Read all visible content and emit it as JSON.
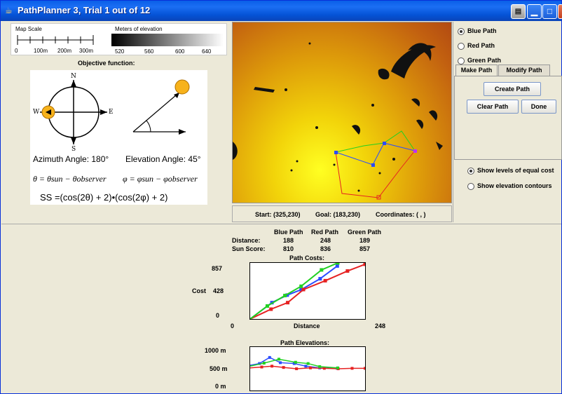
{
  "window": {
    "title": "PathPlanner 3, Trial 1 out of 12",
    "icons": [
      "java-cup-icon",
      "menu-icon",
      "minimize-icon",
      "maximize-icon",
      "close-icon"
    ]
  },
  "scale": {
    "map_scale_label": "Map Scale",
    "ticks": [
      "0",
      "100m",
      "200m",
      "300m"
    ],
    "elevation_label": "Meters of elevation",
    "elevation_ticks": [
      "520",
      "560",
      "600",
      "640"
    ]
  },
  "objective": {
    "title": "Objective function:",
    "compass": {
      "n": "N",
      "s": "S",
      "e": "E",
      "w": "W"
    },
    "azimuth": "Azimuth Angle: 180°",
    "elevation": "Elevation Angle: 45°",
    "formula1a": "θ = θsun − θobserver",
    "formula1b": "φ = φsun − φobserver",
    "formula2": "SS =(cos(2θ) + 2)•(cos(2φ) + 2)"
  },
  "status": {
    "start": "Start: (325,230)",
    "goal": "Goal: (183,230)",
    "coordinates": "Coordinates: ( , )"
  },
  "paths": {
    "options": [
      {
        "label": "Blue Path",
        "selected": true
      },
      {
        "label": "Red Path",
        "selected": false
      },
      {
        "label": "Green Path",
        "selected": false
      }
    ],
    "tabs": [
      {
        "label": "Make Path",
        "active": true
      },
      {
        "label": "Modify Path",
        "active": false
      }
    ],
    "create_label": "Create Path",
    "clear_label": "Clear Path",
    "done_label": "Done"
  },
  "display": {
    "options": [
      {
        "label": "Show levels of equal cost",
        "selected": true
      },
      {
        "label": "Show elevation contours",
        "selected": false
      }
    ]
  },
  "stats": {
    "headers": [
      "Blue Path",
      "Red Path",
      "Green Path"
    ],
    "rows": [
      {
        "label": "Distance:",
        "values": [
          "188",
          "248",
          "189"
        ]
      },
      {
        "label": "Sun Score:",
        "values": [
          "810",
          "836",
          "857"
        ]
      }
    ]
  },
  "colors": {
    "blue": "#2b4cff",
    "red": "#e62222",
    "green": "#22d022"
  },
  "chart_data": [
    {
      "type": "line",
      "title": "Path Costs:",
      "xlabel": "Distance",
      "ylabel": "Cost",
      "xlim": [
        0,
        248
      ],
      "ylim": [
        0,
        857
      ],
      "x_ticks": [
        "0",
        "248"
      ],
      "y_ticks": [
        "857",
        "428",
        "0"
      ],
      "series": [
        {
          "name": "Blue Path",
          "color": "blue",
          "points": [
            [
              0,
              0
            ],
            [
              47,
              250
            ],
            [
              80,
              365
            ],
            [
              110,
              448
            ],
            [
              151,
              615
            ],
            [
              188,
              810
            ]
          ]
        },
        {
          "name": "Red Path",
          "color": "red",
          "points": [
            [
              0,
              0
            ],
            [
              45,
              150
            ],
            [
              81,
              250
            ],
            [
              115,
              450
            ],
            [
              162,
              585
            ],
            [
              210,
              733
            ],
            [
              248,
              836
            ]
          ]
        },
        {
          "name": "Green Path",
          "color": "green",
          "points": [
            [
              0,
              0
            ],
            [
              37,
              198
            ],
            [
              75,
              358
            ],
            [
              110,
              500
            ],
            [
              154,
              750
            ],
            [
              189,
              857
            ]
          ]
        }
      ]
    },
    {
      "type": "line",
      "title": "Path Elevations:",
      "ylabel": "",
      "y_ticks": [
        "1000 m",
        "500 m",
        "0 m"
      ],
      "xlim": [
        0,
        248
      ],
      "ylim": [
        0,
        1000
      ],
      "series": [
        {
          "name": "Blue Path",
          "color": "blue",
          "points": [
            [
              0,
              580
            ],
            [
              20,
              620
            ],
            [
              42,
              760
            ],
            [
              65,
              640
            ],
            [
              95,
              620
            ],
            [
              120,
              560
            ],
            [
              150,
              520
            ],
            [
              188,
              510
            ]
          ]
        },
        {
          "name": "Red Path",
          "color": "red",
          "points": [
            [
              0,
              520
            ],
            [
              25,
              540
            ],
            [
              47,
              560
            ],
            [
              72,
              530
            ],
            [
              100,
              500
            ],
            [
              130,
              520
            ],
            [
              160,
              510
            ],
            [
              190,
              500
            ],
            [
              220,
              510
            ],
            [
              248,
              510
            ]
          ]
        },
        {
          "name": "Green Path",
          "color": "green",
          "points": [
            [
              0,
              560
            ],
            [
              30,
              630
            ],
            [
              62,
              720
            ],
            [
              98,
              650
            ],
            [
              125,
              620
            ],
            [
              150,
              550
            ],
            [
              189,
              520
            ]
          ]
        }
      ]
    }
  ]
}
